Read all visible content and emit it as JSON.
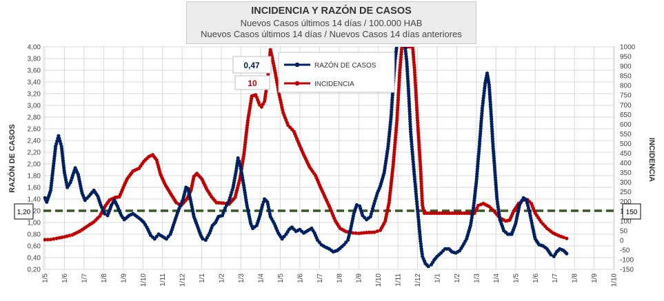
{
  "title": "INCIDENCIA Y RAZÓN DE CASOS",
  "subtitle1": "Nuevos Casos últimos 14 días / 100.000 HAB",
  "subtitle2": "Nuevos Casos últimos 14 días / Nuevos Casos 14 días anteriores",
  "colors": {
    "razon": "#002060",
    "incidencia": "#c00000",
    "threshold": "#375623",
    "grid": "#d9d9d9"
  },
  "chart_data": {
    "type": "line",
    "title": "INCIDENCIA Y RAZÓN DE CASOS",
    "y_left_label": "RAZÓN DE CASOS",
    "y_right_label": "INCIDENCIA",
    "y_left_range": [
      0.2,
      4.0
    ],
    "y_right_range": [
      -150,
      1000
    ],
    "y_left_ticks": [
      "4,00",
      "3,80",
      "3,60",
      "3,40",
      "3,20",
      "3,00",
      "2,80",
      "2,60",
      "2,40",
      "2,20",
      "2,00",
      "1,80",
      "1,60",
      "1,40",
      "1,20",
      "1,00",
      "0,80",
      "0,60",
      "0,40",
      "0,20"
    ],
    "y_right_ticks": [
      "1000",
      "950",
      "900",
      "850",
      "800",
      "750",
      "700",
      "650",
      "600",
      "550",
      "500",
      "450",
      "400",
      "350",
      "300",
      "250",
      "200",
      "150",
      "100",
      "50",
      "0",
      "-50",
      "-100",
      "-150"
    ],
    "x_ticks": [
      "1/5",
      "1/6",
      "1/7",
      "1/8",
      "1/9",
      "1/10",
      "1/11",
      "1/12",
      "1/1",
      "1/2",
      "1/3",
      "1/4",
      "1/5",
      "1/6",
      "1/7",
      "1/8",
      "1/9",
      "1/10",
      "1/11",
      "1/12",
      "1/1",
      "1/2",
      "1/3",
      "1/4",
      "1/5",
      "1/6",
      "1/7",
      "1/8",
      "1/9",
      "1/10"
    ],
    "threshold": {
      "axis": "left",
      "value": 1.2,
      "left_label": "1,20",
      "right_label": "150"
    },
    "current_values": {
      "razon": "0,47",
      "incidencia": "10"
    },
    "series": [
      {
        "name": "RAZÓN DE CASOS",
        "axis": "left",
        "points": [
          [
            0,
            1.42
          ],
          [
            0.1,
            1.35
          ],
          [
            0.3,
            1.55
          ],
          [
            0.55,
            2.3
          ],
          [
            0.7,
            2.48
          ],
          [
            0.85,
            2.3
          ],
          [
            1,
            1.85
          ],
          [
            1.15,
            1.6
          ],
          [
            1.3,
            1.68
          ],
          [
            1.55,
            1.93
          ],
          [
            1.7,
            1.82
          ],
          [
            1.9,
            1.5
          ],
          [
            2.05,
            1.38
          ],
          [
            2.25,
            1.45
          ],
          [
            2.5,
            1.55
          ],
          [
            2.7,
            1.45
          ],
          [
            2.85,
            1.3
          ],
          [
            3.05,
            1.15
          ],
          [
            3.2,
            1.12
          ],
          [
            3.4,
            1.3
          ],
          [
            3.55,
            1.38
          ],
          [
            3.7,
            1.28
          ],
          [
            3.9,
            1.12
          ],
          [
            4.05,
            1.05
          ],
          [
            4.3,
            1.12
          ],
          [
            4.5,
            1.15
          ],
          [
            4.7,
            1.1
          ],
          [
            4.9,
            1.05
          ],
          [
            5.05,
            1.0
          ],
          [
            5.2,
            0.92
          ],
          [
            5.4,
            0.78
          ],
          [
            5.6,
            0.72
          ],
          [
            5.8,
            0.8
          ],
          [
            6.0,
            0.76
          ],
          [
            6.2,
            0.72
          ],
          [
            6.4,
            0.8
          ],
          [
            6.6,
            1.0
          ],
          [
            6.8,
            1.2
          ],
          [
            7.05,
            1.4
          ],
          [
            7.2,
            1.6
          ],
          [
            7.3,
            1.58
          ],
          [
            7.45,
            1.35
          ],
          [
            7.6,
            1.1
          ],
          [
            7.8,
            0.92
          ],
          [
            7.95,
            0.78
          ],
          [
            8.05,
            0.72
          ],
          [
            8.2,
            0.7
          ],
          [
            8.4,
            0.82
          ],
          [
            8.55,
            0.95
          ],
          [
            8.7,
            1.0
          ],
          [
            8.85,
            1.1
          ],
          [
            9.05,
            1.12
          ],
          [
            9.2,
            1.25
          ],
          [
            9.4,
            1.38
          ],
          [
            9.6,
            1.6
          ],
          [
            9.75,
            1.88
          ],
          [
            9.85,
            2.1
          ],
          [
            9.95,
            2.0
          ],
          [
            10.1,
            1.72
          ],
          [
            10.3,
            1.3
          ],
          [
            10.5,
            0.98
          ],
          [
            10.6,
            0.9
          ],
          [
            10.8,
            0.95
          ],
          [
            10.95,
            1.1
          ],
          [
            11.1,
            1.3
          ],
          [
            11.2,
            1.4
          ],
          [
            11.35,
            1.35
          ],
          [
            11.5,
            1.1
          ],
          [
            11.7,
            0.98
          ],
          [
            11.9,
            0.82
          ],
          [
            12.1,
            0.72
          ],
          [
            12.3,
            0.8
          ],
          [
            12.45,
            0.88
          ],
          [
            12.6,
            0.92
          ],
          [
            12.8,
            0.85
          ],
          [
            13.0,
            0.88
          ],
          [
            13.2,
            0.82
          ],
          [
            13.4,
            0.86
          ],
          [
            13.6,
            0.9
          ],
          [
            13.75,
            0.82
          ],
          [
            13.9,
            0.7
          ],
          [
            14.1,
            0.62
          ],
          [
            14.3,
            0.58
          ],
          [
            14.5,
            0.55
          ],
          [
            14.7,
            0.5
          ],
          [
            14.9,
            0.52
          ],
          [
            15.05,
            0.56
          ],
          [
            15.25,
            0.62
          ],
          [
            15.45,
            0.7
          ],
          [
            15.6,
            0.9
          ],
          [
            15.75,
            1.15
          ],
          [
            15.9,
            1.3
          ],
          [
            16.05,
            1.28
          ],
          [
            16.2,
            1.12
          ],
          [
            16.4,
            1.05
          ],
          [
            16.6,
            1.1
          ],
          [
            16.75,
            1.28
          ],
          [
            16.95,
            1.5
          ],
          [
            17.1,
            1.62
          ],
          [
            17.3,
            1.85
          ],
          [
            17.5,
            2.3
          ],
          [
            17.65,
            2.8
          ],
          [
            17.75,
            3.3
          ],
          [
            17.85,
            3.75
          ],
          [
            17.95,
            4.05
          ],
          [
            18.35,
            4.05
          ],
          [
            18.45,
            3.75
          ],
          [
            18.55,
            3.2
          ],
          [
            18.65,
            2.55
          ],
          [
            18.8,
            1.95
          ],
          [
            18.95,
            1.4
          ],
          [
            19.05,
            1.05
          ],
          [
            19.15,
            0.68
          ],
          [
            19.25,
            0.42
          ],
          [
            19.4,
            0.3
          ],
          [
            19.55,
            0.25
          ],
          [
            19.7,
            0.28
          ],
          [
            19.85,
            0.36
          ],
          [
            20.0,
            0.42
          ],
          [
            20.2,
            0.48
          ],
          [
            20.4,
            0.55
          ],
          [
            20.6,
            0.55
          ],
          [
            20.75,
            0.5
          ],
          [
            20.95,
            0.48
          ],
          [
            21.15,
            0.52
          ],
          [
            21.3,
            0.6
          ],
          [
            21.5,
            0.72
          ],
          [
            21.7,
            0.95
          ],
          [
            21.85,
            1.25
          ],
          [
            22.0,
            1.7
          ],
          [
            22.15,
            2.3
          ],
          [
            22.3,
            2.95
          ],
          [
            22.45,
            3.38
          ],
          [
            22.55,
            3.55
          ],
          [
            22.65,
            3.35
          ],
          [
            22.75,
            2.85
          ],
          [
            22.85,
            2.3
          ],
          [
            22.95,
            1.85
          ],
          [
            23.05,
            1.4
          ],
          [
            23.2,
            1.05
          ],
          [
            23.4,
            0.86
          ],
          [
            23.6,
            0.8
          ],
          [
            23.8,
            0.8
          ],
          [
            24.0,
            0.98
          ],
          [
            24.2,
            1.3
          ],
          [
            24.4,
            1.42
          ],
          [
            24.55,
            1.38
          ],
          [
            24.7,
            1.2
          ],
          [
            24.85,
            0.95
          ],
          [
            25.0,
            0.72
          ],
          [
            25.2,
            0.62
          ],
          [
            25.4,
            0.6
          ],
          [
            25.6,
            0.55
          ],
          [
            25.8,
            0.45
          ],
          [
            25.95,
            0.42
          ],
          [
            26.1,
            0.5
          ],
          [
            26.25,
            0.55
          ],
          [
            26.45,
            0.52
          ],
          [
            26.6,
            0.47
          ]
        ]
      },
      {
        "name": "INCIDENCIA",
        "axis": "right",
        "points": [
          [
            0,
            3
          ],
          [
            0.3,
            4
          ],
          [
            0.6,
            10
          ],
          [
            1,
            18
          ],
          [
            1.4,
            28
          ],
          [
            1.8,
            48
          ],
          [
            2.2,
            75
          ],
          [
            2.5,
            95
          ],
          [
            2.8,
            125
          ],
          [
            3.1,
            180
          ],
          [
            3.3,
            208
          ],
          [
            3.6,
            222
          ],
          [
            3.8,
            225
          ],
          [
            4.05,
            285
          ],
          [
            4.2,
            318
          ],
          [
            4.5,
            358
          ],
          [
            4.8,
            372
          ],
          [
            5.05,
            408
          ],
          [
            5.3,
            432
          ],
          [
            5.5,
            442
          ],
          [
            5.7,
            415
          ],
          [
            5.9,
            340
          ],
          [
            6.15,
            285
          ],
          [
            6.45,
            235
          ],
          [
            6.7,
            195
          ],
          [
            6.95,
            180
          ],
          [
            7.25,
            215
          ],
          [
            7.45,
            258
          ],
          [
            7.6,
            330
          ],
          [
            7.75,
            345
          ],
          [
            8.0,
            318
          ],
          [
            8.25,
            265
          ],
          [
            8.5,
            225
          ],
          [
            8.75,
            195
          ],
          [
            9.1,
            192
          ],
          [
            9.4,
            188
          ],
          [
            9.7,
            222
          ],
          [
            9.95,
            320
          ],
          [
            10.15,
            445
          ],
          [
            10.35,
            620
          ],
          [
            10.55,
            745
          ],
          [
            10.75,
            752
          ],
          [
            10.95,
            700
          ],
          [
            11.05,
            690
          ],
          [
            11.2,
            718
          ],
          [
            11.35,
            820
          ],
          [
            11.5,
            985
          ],
          [
            11.6,
            940
          ],
          [
            11.75,
            865
          ],
          [
            11.95,
            752
          ],
          [
            12.15,
            660
          ],
          [
            12.4,
            595
          ],
          [
            12.7,
            562
          ],
          [
            12.95,
            500
          ],
          [
            13.2,
            442
          ],
          [
            13.5,
            378
          ],
          [
            13.8,
            335
          ],
          [
            14.05,
            275
          ],
          [
            14.3,
            220
          ],
          [
            14.55,
            165
          ],
          [
            14.8,
            102
          ],
          [
            15.05,
            62
          ],
          [
            15.35,
            45
          ],
          [
            15.7,
            38
          ],
          [
            16.0,
            36
          ],
          [
            16.4,
            40
          ],
          [
            16.8,
            42
          ],
          [
            17.1,
            52
          ],
          [
            17.35,
            98
          ],
          [
            17.55,
            195
          ],
          [
            17.75,
            380
          ],
          [
            17.95,
            620
          ],
          [
            18.1,
            880
          ],
          [
            18.2,
            1000
          ],
          [
            18.75,
            1000
          ],
          [
            18.85,
            880
          ],
          [
            19.0,
            620
          ],
          [
            19.15,
            380
          ],
          [
            19.25,
            180
          ],
          [
            19.35,
            140
          ],
          [
            21.9,
            140
          ],
          [
            22.1,
            180
          ],
          [
            22.35,
            190
          ],
          [
            22.65,
            175
          ],
          [
            22.95,
            145
          ],
          [
            23.2,
            115
          ],
          [
            23.5,
            100
          ],
          [
            23.7,
            105
          ],
          [
            23.9,
            150
          ],
          [
            24.15,
            190
          ],
          [
            24.4,
            208
          ],
          [
            24.6,
            210
          ],
          [
            24.8,
            190
          ],
          [
            25.0,
            140
          ],
          [
            25.3,
            95
          ],
          [
            25.6,
            62
          ],
          [
            25.9,
            38
          ],
          [
            26.2,
            24
          ],
          [
            26.45,
            15
          ],
          [
            26.6,
            10
          ]
        ]
      }
    ]
  }
}
